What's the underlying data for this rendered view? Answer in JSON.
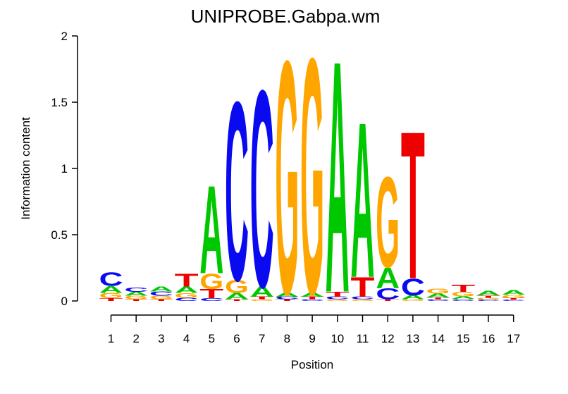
{
  "title": "UNIPROBE.Gabpa.wm",
  "chart_data": {
    "type": "sequence_logo",
    "title": "UNIPROBE.Gabpa.wm",
    "xlabel": "Position",
    "ylabel": "Information content",
    "ylim": [
      0,
      2
    ],
    "yticks": [
      0,
      0.5,
      1,
      1.5,
      2
    ],
    "ytick_labels": [
      "0",
      "0.5",
      "1",
      "1.5",
      "2"
    ],
    "positions": [
      "1",
      "2",
      "3",
      "4",
      "5",
      "6",
      "7",
      "8",
      "9",
      "10",
      "11",
      "12",
      "13",
      "14",
      "15",
      "16",
      "17"
    ],
    "legend": "none",
    "grid": false,
    "base_colors": {
      "A": "#00C800",
      "C": "#0A0AF0",
      "G": "#FFA500",
      "T": "#EE0000"
    },
    "stacks": [
      [
        {
          "base": "C",
          "ic": 0.105
        },
        {
          "base": "A",
          "ic": 0.052
        },
        {
          "base": "G",
          "ic": 0.042
        },
        {
          "base": "T",
          "ic": 0.02
        }
      ],
      [
        {
          "base": "C",
          "ic": 0.032
        },
        {
          "base": "A",
          "ic": 0.03
        },
        {
          "base": "G",
          "ic": 0.027
        },
        {
          "base": "T",
          "ic": 0.012
        }
      ],
      [
        {
          "base": "A",
          "ic": 0.037
        },
        {
          "base": "C",
          "ic": 0.032
        },
        {
          "base": "G",
          "ic": 0.027
        },
        {
          "base": "T",
          "ic": 0.012
        }
      ],
      [
        {
          "base": "T",
          "ic": 0.1
        },
        {
          "base": "A",
          "ic": 0.05
        },
        {
          "base": "G",
          "ic": 0.035
        },
        {
          "base": "C",
          "ic": 0.025
        }
      ],
      [
        {
          "base": "A",
          "ic": 0.68
        },
        {
          "base": "G",
          "ic": 0.12
        },
        {
          "base": "T",
          "ic": 0.07
        },
        {
          "base": "C",
          "ic": 0.02
        }
      ],
      [
        {
          "base": "C",
          "ic": 1.38
        },
        {
          "base": "G",
          "ic": 0.1
        },
        {
          "base": "A",
          "ic": 0.05
        },
        {
          "base": "T",
          "ic": 0.012
        }
      ],
      [
        {
          "base": "C",
          "ic": 1.52
        },
        {
          "base": "A",
          "ic": 0.08
        },
        {
          "base": "T",
          "ic": 0.02
        },
        {
          "base": "G",
          "ic": 0.012
        }
      ],
      [
        {
          "base": "G",
          "ic": 1.8
        },
        {
          "base": "A",
          "ic": 0.03
        },
        {
          "base": "C",
          "ic": 0.02
        },
        {
          "base": "T",
          "ic": 0.012
        }
      ],
      [
        {
          "base": "G",
          "ic": 1.82
        },
        {
          "base": "A",
          "ic": 0.03
        },
        {
          "base": "T",
          "ic": 0.02
        },
        {
          "base": "C",
          "ic": 0.012
        }
      ],
      [
        {
          "base": "A",
          "ic": 1.79
        },
        {
          "base": "T",
          "ic": 0.04
        },
        {
          "base": "C",
          "ic": 0.02
        },
        {
          "base": "G",
          "ic": 0.012
        }
      ],
      [
        {
          "base": "A",
          "ic": 1.2
        },
        {
          "base": "T",
          "ic": 0.15
        },
        {
          "base": "C",
          "ic": 0.02
        },
        {
          "base": "G",
          "ic": 0.012
        }
      ],
      [
        {
          "base": "G",
          "ic": 0.7
        },
        {
          "base": "A",
          "ic": 0.16
        },
        {
          "base": "C",
          "ic": 0.085
        },
        {
          "base": "T",
          "ic": 0.012
        }
      ],
      [
        {
          "base": "T",
          "ic": 1.14
        },
        {
          "base": "C",
          "ic": 0.13
        },
        {
          "base": "A",
          "ic": 0.03
        },
        {
          "base": "G",
          "ic": 0.012
        }
      ],
      [
        {
          "base": "G",
          "ic": 0.04
        },
        {
          "base": "A",
          "ic": 0.03
        },
        {
          "base": "T",
          "ic": 0.015
        },
        {
          "base": "C",
          "ic": 0.012
        }
      ],
      [
        {
          "base": "T",
          "ic": 0.055
        },
        {
          "base": "G",
          "ic": 0.035
        },
        {
          "base": "A",
          "ic": 0.02
        },
        {
          "base": "C",
          "ic": 0.015
        }
      ],
      [
        {
          "base": "A",
          "ic": 0.035
        },
        {
          "base": "T",
          "ic": 0.018
        },
        {
          "base": "G",
          "ic": 0.015
        },
        {
          "base": "C",
          "ic": 0.01
        }
      ],
      [
        {
          "base": "A",
          "ic": 0.035
        },
        {
          "base": "G",
          "ic": 0.025
        },
        {
          "base": "T",
          "ic": 0.012
        },
        {
          "base": "C",
          "ic": 0.01
        }
      ]
    ]
  }
}
